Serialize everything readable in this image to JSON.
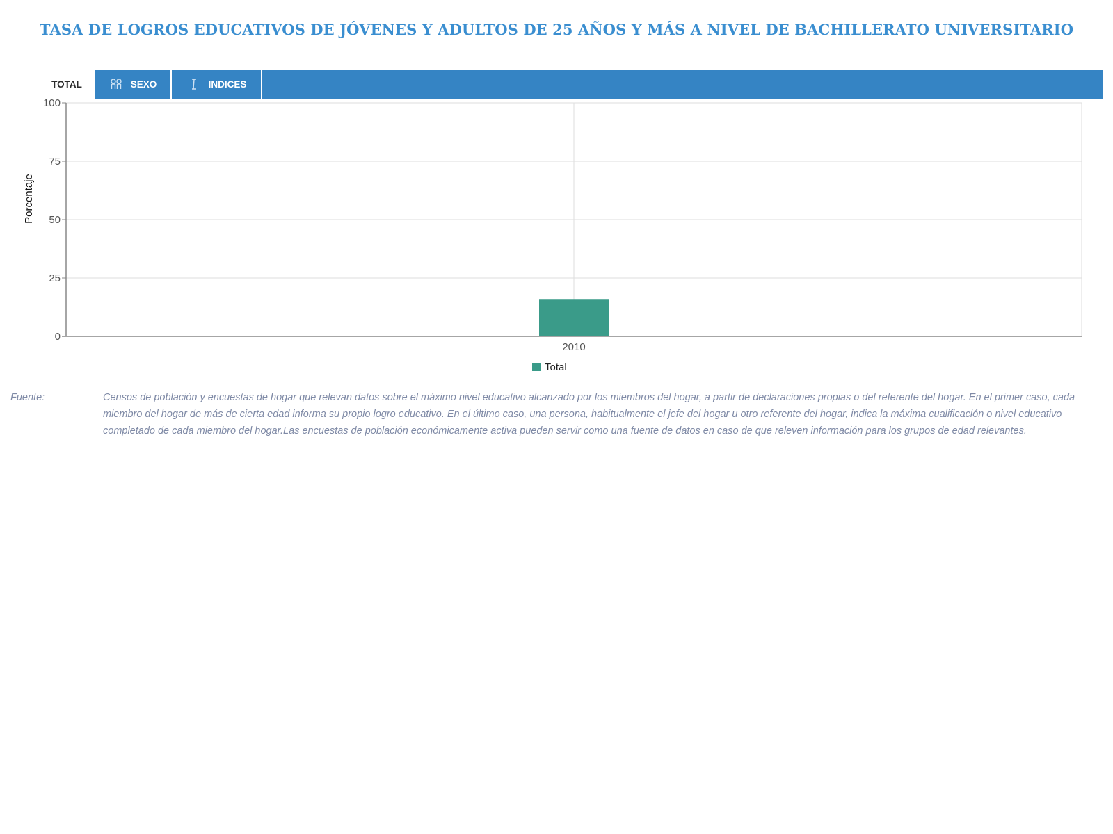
{
  "page": {
    "title": "TASA DE LOGROS EDUCATIVOS DE JÓVENES Y ADULTOS DE 25 AÑOS Y MÁS A NIVEL DE BACHILLERATO UNIVERSITARIO"
  },
  "tabs": [
    {
      "label": "TOTAL",
      "active": true,
      "icon": ""
    },
    {
      "label": "SEXO",
      "active": false,
      "icon": "gender-icon"
    },
    {
      "label": "INDICES",
      "active": false,
      "icon": "text-cursor-icon"
    }
  ],
  "colors": {
    "title": "#3a8ed0",
    "tabbar": "#3584c4",
    "bar": "#3a9b89",
    "source_text": "#7f8aa6"
  },
  "chart_data": {
    "type": "bar",
    "title": "",
    "xlabel": "",
    "ylabel": "Porcentaje",
    "categories": [
      "2010"
    ],
    "series": [
      {
        "name": "Total",
        "values": [
          16
        ],
        "color": "#3a9b89"
      }
    ],
    "ylim": [
      0,
      100
    ],
    "yticks": [
      0,
      25,
      50,
      75,
      100
    ],
    "grid": true,
    "legend": "bottom-center"
  },
  "source": {
    "label": "Fuente:",
    "text": "Censos de población y encuestas de hogar que relevan datos sobre el máximo nivel educativo alcanzado por los miembros del hogar, a partir de declaraciones propias o del referente del hogar. En el primer caso, cada miembro del hogar de más de cierta edad informa su propio logro educativo. En el último caso, una persona, habitualmente el jefe del hogar u otro referente del hogar, indica la máxima cualificación o nivel educativo completado de cada miembro del hogar.Las encuestas de población económicamente activa pueden servir como una fuente de datos en caso de que releven información para los grupos de edad relevantes."
  }
}
